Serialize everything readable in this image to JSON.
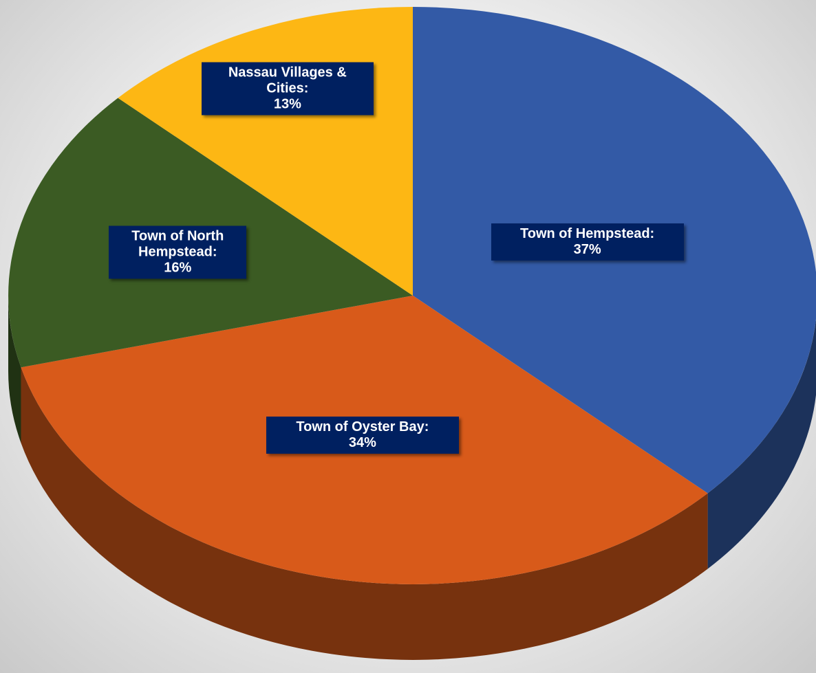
{
  "chart_data": {
    "type": "pie",
    "categories": [
      "Town of Hempstead:",
      "Town of Oyster Bay:",
      "Town of North Hempstead:",
      "Nassau Villages & Cities:"
    ],
    "values": [
      37,
      34,
      16,
      13
    ],
    "value_labels": [
      "37%",
      "34%",
      "16%",
      "13%"
    ],
    "colors": [
      "#335aa6",
      "#d85a1a",
      "#3b5b23",
      "#fdb714"
    ]
  }
}
